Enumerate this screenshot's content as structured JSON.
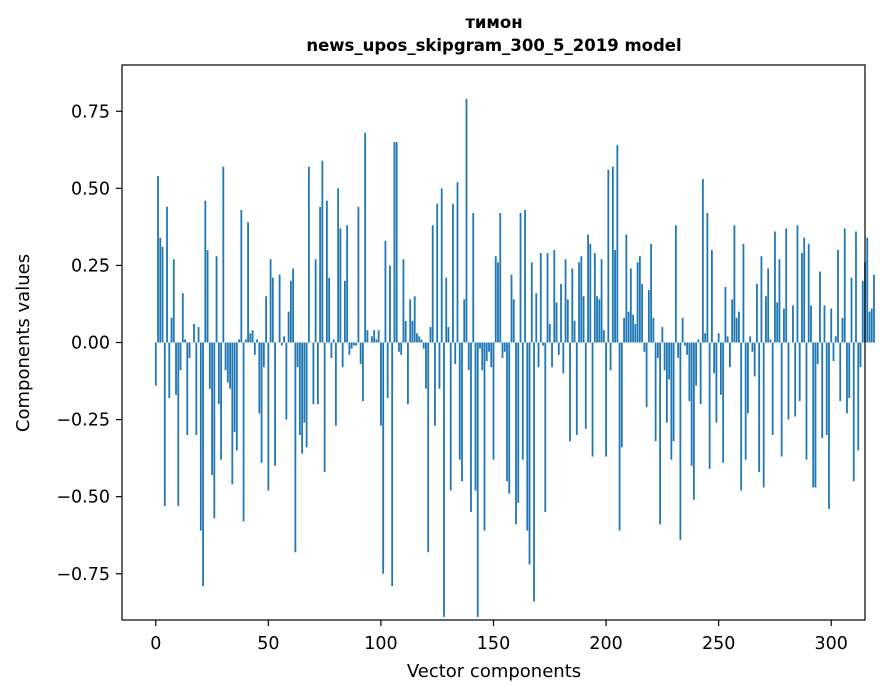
{
  "chart_data": {
    "type": "bar",
    "title_line1": "тимон",
    "title_line2": "news_upos_skipgram_300_5_2019 model",
    "xlabel": "Vector components",
    "ylabel": "Components values",
    "xlim": [
      -15,
      315
    ],
    "ylim": [
      -0.9,
      0.9
    ],
    "xticks": [
      0,
      50,
      100,
      150,
      200,
      250,
      300
    ],
    "xtick_labels": [
      "0",
      "50",
      "100",
      "150",
      "200",
      "250",
      "300"
    ],
    "yticks": [
      -0.75,
      -0.5,
      -0.25,
      0.0,
      0.25,
      0.5,
      0.75
    ],
    "ytick_labels": [
      "−0.75",
      "−0.50",
      "−0.25",
      "0.00",
      "0.25",
      "0.50",
      "0.75"
    ],
    "bar_color": "#1f77b4",
    "values": [
      -0.14,
      0.54,
      0.34,
      0.31,
      -0.53,
      0.44,
      -0.18,
      0.08,
      0.27,
      -0.17,
      -0.53,
      -0.09,
      0.16,
      0.01,
      -0.3,
      -0.05,
      0.0,
      0.06,
      -0.3,
      0.05,
      -0.61,
      -0.79,
      0.46,
      0.3,
      -0.15,
      -0.43,
      -0.57,
      0.28,
      -0.2,
      -0.38,
      0.57,
      -0.09,
      -0.13,
      -0.15,
      -0.46,
      -0.29,
      -0.35,
      0.01,
      0.43,
      -0.58,
      0.01,
      0.39,
      0.03,
      0.04,
      -0.04,
      0.01,
      -0.23,
      -0.39,
      -0.08,
      0.15,
      -0.48,
      0.27,
      0.21,
      -0.4,
      0.0,
      0.22,
      -0.01,
      0.02,
      -0.25,
      0.1,
      0.2,
      0.24,
      -0.68,
      -0.08,
      -0.3,
      -0.36,
      -0.26,
      -0.34,
      0.57,
      0.0,
      -0.2,
      0.27,
      -0.2,
      0.44,
      0.59,
      -0.42,
      0.46,
      0.21,
      -0.05,
      0.01,
      -0.27,
      0.5,
      0.37,
      -0.08,
      0.2,
      0.38,
      -0.04,
      -0.02,
      -0.01,
      -0.01,
      0.44,
      -0.07,
      -0.19,
      0.68,
      0.04,
      0.0,
      0.02,
      0.04,
      0.01,
      0.04,
      -0.27,
      -0.75,
      0.33,
      -0.18,
      0.25,
      -0.79,
      0.65,
      0.65,
      -0.03,
      -0.04,
      0.27,
      0.07,
      -0.2,
      0.14,
      0.07,
      0.15,
      0.03,
      0.02,
      0.01,
      -0.02,
      -0.15,
      -0.68,
      0.05,
      0.38,
      -0.27,
      0.45,
      -0.15,
      0.5,
      -0.89,
      0.21,
      0.05,
      -0.48,
      0.45,
      -0.07,
      0.52,
      -0.38,
      -0.45,
      0.14,
      0.79,
      -0.09,
      -0.55,
      0.42,
      -0.48,
      -0.89,
      -0.02,
      -0.09,
      -0.61,
      -0.06,
      -0.03,
      -0.08,
      -0.38,
      0.28,
      0.26,
      0.42,
      -0.05,
      -0.03,
      -0.45,
      -0.49,
      0.22,
      0.14,
      -0.59,
      -0.52,
      0.42,
      -0.38,
      0.43,
      -0.61,
      -0.72,
      0.26,
      -0.84,
      0.16,
      -0.08,
      0.29,
      -0.01,
      -0.55,
      0.29,
      0.06,
      -0.08,
      0.3,
      0.13,
      -0.04,
      0.19,
      -0.1,
      0.27,
      0.14,
      -0.32,
      0.24,
      0.07,
      -0.3,
      0.26,
      0.28,
      0.15,
      -0.28,
      0.35,
      0.32,
      -0.37,
      0.29,
      0.15,
      0.14,
      0.27,
      0.04,
      -0.37,
      0.56,
      -0.09,
      0.57,
      0.3,
      0.64,
      -0.61,
      -0.34,
      0.08,
      0.35,
      0.1,
      0.24,
      0.09,
      0.06,
      0.26,
      0.28,
      0.19,
      -0.03,
      -0.21,
      0.17,
      0.32,
      0.08,
      -0.32,
      -0.05,
      -0.59,
      0.05,
      -0.09,
      -0.26,
      -0.12,
      -0.38,
      -0.32,
      0.38,
      -0.05,
      -0.64,
      0.08,
      -0.01,
      -0.04,
      -0.19,
      -0.4,
      -0.51,
      -0.14,
      0.01,
      -0.2,
      0.53,
      0.03,
      0.42,
      -0.41,
      0.3,
      -0.1,
      -0.26,
      0.03,
      -0.17,
      -0.39,
      0.18,
      0.02,
      -0.08,
      0.14,
      0.38,
      0.08,
      0.1,
      -0.48,
      0.32,
      -0.38,
      -0.23,
      0.02,
      -0.03,
      -0.11,
      0.19,
      -0.42,
      0.28,
      -0.47,
      0.15,
      0.24,
      0.01,
      -0.3,
      0.36,
      0.13,
      0.27,
      -0.37,
      0.11,
      0.37,
      -0.25,
      0.0,
      0.12,
      -0.24,
      0.38,
      -0.19,
      0.29,
      0.34,
      -0.38,
      0.32,
      0.12,
      -0.47,
      -0.47,
      -0.07,
      0.23,
      -0.31,
      0.12,
      -0.3,
      -0.54,
      0.11,
      -0.06,
      0.02,
      0.3,
      -0.19,
      0.08,
      0.37,
      -0.23,
      -0.18,
      0.21,
      -0.45,
      0.36,
      -0.35,
      -0.08,
      0.2,
      0.26,
      0.34,
      0.1,
      0.11,
      0.22
    ]
  }
}
